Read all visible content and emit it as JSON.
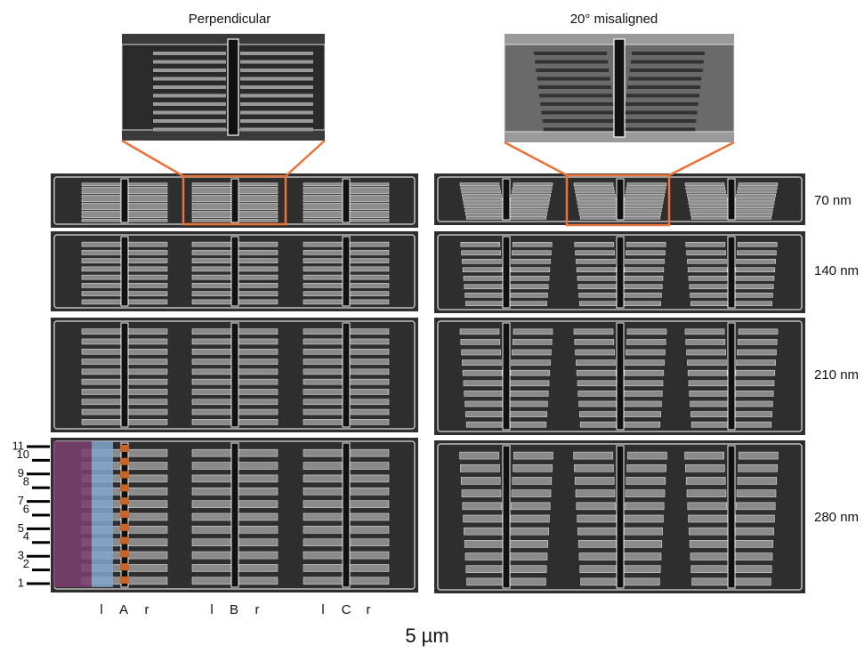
{
  "titles": [
    "Perpendicular",
    "20° misaligned"
  ],
  "widths": [
    "70 nm",
    "140 nm",
    "210 nm",
    "280 nm"
  ],
  "row_numbers": [
    "1",
    "2",
    "3",
    "4",
    "5",
    "6",
    "7",
    "8",
    "9",
    "10",
    "11"
  ],
  "column_labels": [
    "l",
    "A",
    "r",
    "l",
    "B",
    "r",
    "l",
    "C",
    "r"
  ],
  "scale_bar": "5 µm"
}
